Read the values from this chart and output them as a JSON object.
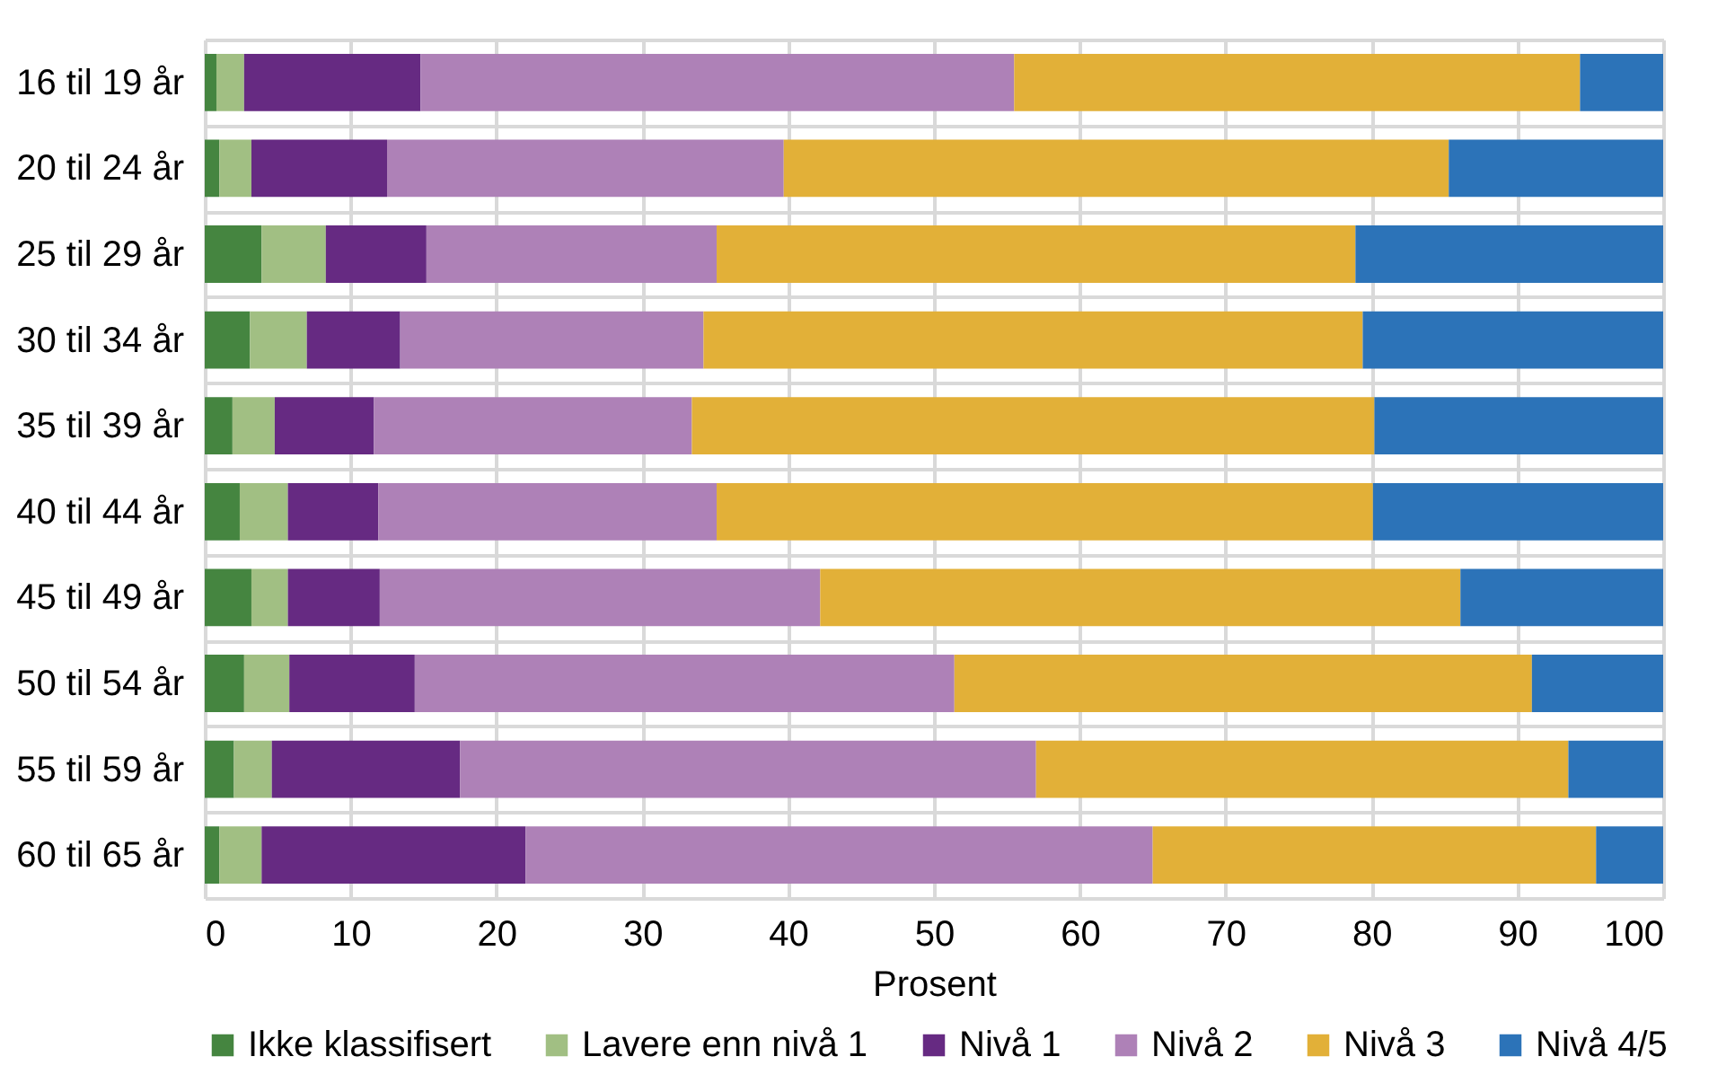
{
  "chart_data": {
    "type": "bar",
    "orientation": "horizontal",
    "stacked": true,
    "categories": [
      "16 til 19 år",
      "20 til 24 år",
      "25 til 29 år",
      "30 til 34 år",
      "35 til 39 år",
      "40 til 44 år",
      "45 til 49 år",
      "50 til 54 år",
      "55 til 59 år",
      "60 til 65 år"
    ],
    "series": [
      {
        "name": "Ikke klassifisert",
        "color": "#458540",
        "values": [
          0.8,
          1.0,
          3.9,
          3.1,
          1.9,
          2.4,
          3.2,
          2.7,
          2.0,
          1.0
        ]
      },
      {
        "name": "Lavere enn nivå 1",
        "color": "#a1bf83",
        "values": [
          1.9,
          2.2,
          4.4,
          3.9,
          2.9,
          3.3,
          2.5,
          3.1,
          2.6,
          2.9
        ]
      },
      {
        "name": "Nivå 1",
        "color": "#662a82",
        "values": [
          12.1,
          9.3,
          6.9,
          6.4,
          6.8,
          6.2,
          6.3,
          8.6,
          12.9,
          18.1
        ]
      },
      {
        "name": "Nivå 2",
        "color": "#ae81b7",
        "values": [
          40.7,
          27.2,
          19.9,
          20.8,
          21.8,
          23.2,
          30.2,
          37.0,
          39.5,
          43.0
        ]
      },
      {
        "name": "Nivå 3",
        "color": "#e2b038",
        "values": [
          38.8,
          45.6,
          43.8,
          45.2,
          46.8,
          45.0,
          43.9,
          39.6,
          36.5,
          30.4
        ]
      },
      {
        "name": "Nivå 4/5",
        "color": "#2c73b8",
        "values": [
          5.7,
          14.7,
          21.1,
          20.6,
          19.8,
          19.9,
          13.9,
          9.0,
          6.5,
          4.6
        ]
      }
    ],
    "xlabel": "Prosent",
    "xlim": [
      0,
      100
    ],
    "xticks": [
      0,
      10,
      20,
      30,
      40,
      50,
      60,
      70,
      80,
      90,
      100
    ],
    "grid": true,
    "legend": "bottom"
  }
}
